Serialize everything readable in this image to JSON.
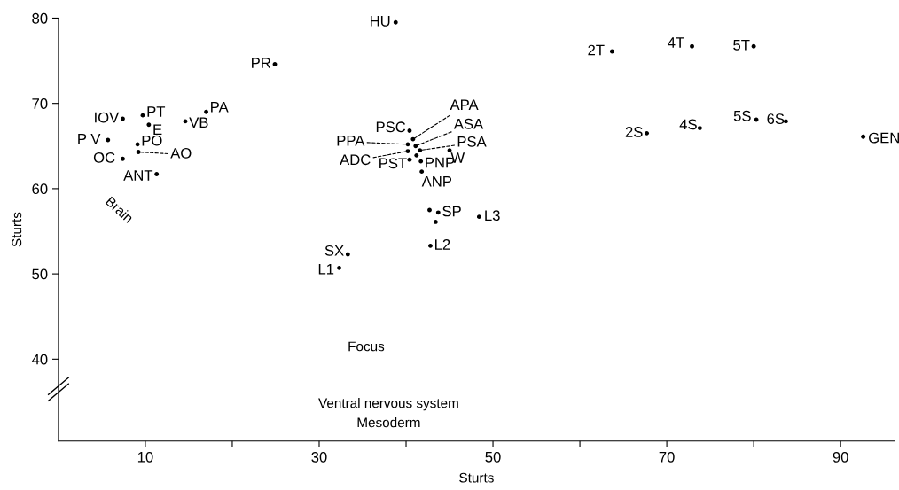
{
  "chart_data": {
    "type": "scatter",
    "xlabel": "Sturts",
    "ylabel": "Sturts",
    "xlim": [
      0,
      96.2
    ],
    "ylim": [
      30.4,
      80
    ],
    "xticks": [
      {
        "value": 10,
        "label": "10"
      },
      {
        "value": 20,
        "label": null
      },
      {
        "value": 30,
        "label": "30"
      },
      {
        "value": 40,
        "label": null
      },
      {
        "value": 50,
        "label": "50"
      },
      {
        "value": 60,
        "label": null
      },
      {
        "value": 70,
        "label": "70"
      },
      {
        "value": 80,
        "label": null
      },
      {
        "value": 90,
        "label": "90"
      }
    ],
    "yticks": [
      40,
      50,
      60,
      70,
      80
    ],
    "grid": false,
    "legend": false,
    "marker": "circle",
    "series": [
      {
        "color": "#000000",
        "x": [
          7.4,
          9.7,
          10.4,
          5.7,
          9.1,
          9.2,
          7.4,
          11.3,
          14.6,
          17.0,
          24.9,
          38.8,
          40.4,
          40.8,
          41.1,
          41.6,
          40.2,
          40.2,
          40.4,
          41.7,
          41.8,
          45.0,
          43.7,
          48.4,
          42.8,
          33.3,
          32.3,
          63.7,
          72.9,
          80.0,
          67.7,
          73.8,
          80.3,
          83.7,
          92.6,
          41.2,
          42.7,
          43.4
        ],
        "values": [
          68.2,
          68.6,
          67.5,
          65.7,
          65.2,
          64.3,
          63.5,
          61.7,
          67.9,
          69.0,
          74.6,
          79.5,
          66.8,
          65.8,
          65.0,
          64.5,
          65.2,
          64.4,
          63.4,
          63.2,
          62.0,
          64.5,
          57.2,
          56.7,
          53.3,
          52.3,
          50.7,
          76.1,
          76.7,
          76.7,
          66.5,
          67.1,
          68.1,
          67.9,
          66.1,
          63.9,
          57.5,
          56.1
        ]
      }
    ],
    "annotations": [
      {
        "text": "IOV",
        "x": 7.4,
        "y": 68.2
      },
      {
        "text": "PT",
        "x": 9.7,
        "y": 68.6
      },
      {
        "text": "E",
        "x": 10.4,
        "y": 67.5
      },
      {
        "text": "P V",
        "x": 5.7,
        "y": 65.7
      },
      {
        "text": "PO",
        "x": 9.1,
        "y": 65.2
      },
      {
        "text": "AO",
        "x": 9.2,
        "y": 64.3
      },
      {
        "text": "OC",
        "x": 7.4,
        "y": 63.5
      },
      {
        "text": "ANT",
        "x": 11.3,
        "y": 61.7
      },
      {
        "text": "VB",
        "x": 14.6,
        "y": 67.9
      },
      {
        "text": "PA",
        "x": 17.0,
        "y": 69.0
      },
      {
        "text": "PR",
        "x": 24.9,
        "y": 74.6
      },
      {
        "text": "HU",
        "x": 38.8,
        "y": 79.5
      },
      {
        "text": "PSC",
        "x": 40.4,
        "y": 66.8
      },
      {
        "text": "APA",
        "x": 40.8,
        "y": 65.8
      },
      {
        "text": "ASA",
        "x": 41.1,
        "y": 65.0
      },
      {
        "text": "PSA",
        "x": 41.6,
        "y": 64.5
      },
      {
        "text": "PPA",
        "x": 40.2,
        "y": 65.2
      },
      {
        "text": "ADC",
        "x": 40.2,
        "y": 64.4
      },
      {
        "text": "PST",
        "x": 40.4,
        "y": 63.4
      },
      {
        "text": "PNP",
        "x": 41.7,
        "y": 63.2
      },
      {
        "text": "ANP",
        "x": 41.8,
        "y": 62.0
      },
      {
        "text": "W",
        "x": 45.0,
        "y": 64.5
      },
      {
        "text": "SP",
        "x": 43.7,
        "y": 57.2
      },
      {
        "text": "L3",
        "x": 48.4,
        "y": 56.7
      },
      {
        "text": "L2",
        "x": 42.8,
        "y": 53.3
      },
      {
        "text": "SX",
        "x": 33.3,
        "y": 52.3
      },
      {
        "text": "L1",
        "x": 32.3,
        "y": 50.7
      },
      {
        "text": "2T",
        "x": 63.7,
        "y": 76.1
      },
      {
        "text": "4T",
        "x": 72.9,
        "y": 76.7
      },
      {
        "text": "5T",
        "x": 80.0,
        "y": 76.7
      },
      {
        "text": "2S",
        "x": 67.7,
        "y": 66.5
      },
      {
        "text": "4S",
        "x": 73.8,
        "y": 67.1
      },
      {
        "text": "5S",
        "x": 80.3,
        "y": 68.1
      },
      {
        "text": "6S",
        "x": 83.7,
        "y": 67.9
      },
      {
        "text": "GEN",
        "x": 92.6,
        "y": 66.1
      },
      "Brain",
      "Focus",
      "Ventral nervous system",
      "Mesoderm"
    ]
  }
}
